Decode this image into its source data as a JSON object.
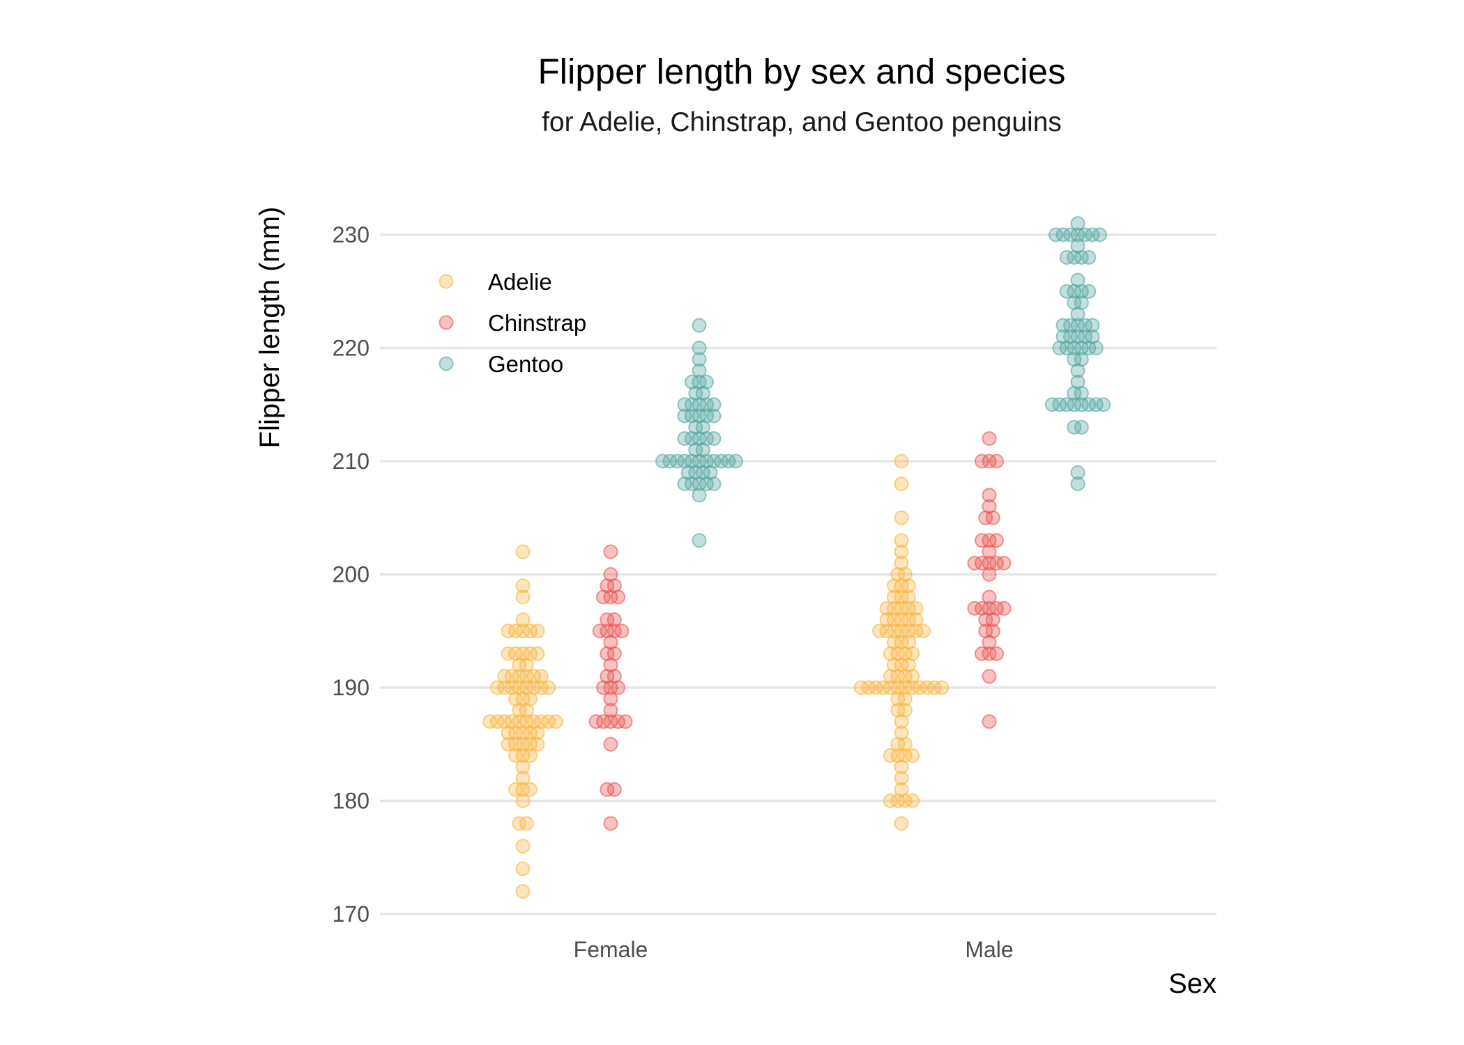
{
  "chart_data": {
    "type": "scatter",
    "subtype": "dotplot",
    "title": "Flipper length by sex and species",
    "subtitle": "for Adelie, Chinstrap, and Gentoo penguins",
    "xlabel": "Sex",
    "ylabel": "Flipper length (mm)",
    "categories": [
      "Female",
      "Male"
    ],
    "ylim": [
      169,
      233
    ],
    "yticks": [
      170,
      180,
      190,
      200,
      210,
      220,
      230
    ],
    "grid": "horizontal",
    "legend": "top-left",
    "series": [
      {
        "name": "Adelie",
        "color": "#F8B541",
        "values": {
          "Female": [
            172,
            174,
            176,
            178,
            178,
            180,
            181,
            181,
            181,
            182,
            183,
            184,
            184,
            184,
            185,
            185,
            185,
            185,
            185,
            186,
            186,
            186,
            186,
            186,
            187,
            187,
            187,
            187,
            187,
            187,
            187,
            187,
            187,
            187,
            188,
            188,
            189,
            189,
            189,
            190,
            190,
            190,
            190,
            190,
            190,
            190,
            190,
            191,
            191,
            191,
            191,
            191,
            191,
            192,
            192,
            193,
            193,
            193,
            193,
            193,
            195,
            195,
            195,
            195,
            195,
            196,
            198,
            199,
            202
          ],
          "Male": [
            178,
            180,
            180,
            180,
            180,
            181,
            182,
            183,
            184,
            184,
            184,
            184,
            185,
            185,
            186,
            187,
            188,
            188,
            189,
            189,
            190,
            190,
            190,
            190,
            190,
            190,
            190,
            190,
            190,
            190,
            190,
            190,
            191,
            191,
            191,
            191,
            192,
            192,
            192,
            193,
            193,
            193,
            193,
            194,
            194,
            194,
            195,
            195,
            195,
            195,
            195,
            195,
            195,
            196,
            196,
            196,
            196,
            196,
            197,
            197,
            197,
            197,
            197,
            198,
            198,
            198,
            199,
            199,
            199,
            200,
            200,
            201,
            202,
            203,
            205,
            208,
            210
          ]
        }
      },
      {
        "name": "Chinstrap",
        "color": "#E8534F",
        "values": {
          "Female": [
            178,
            181,
            181,
            185,
            187,
            187,
            187,
            187,
            187,
            188,
            189,
            190,
            190,
            190,
            191,
            191,
            192,
            193,
            193,
            194,
            195,
            195,
            195,
            195,
            196,
            196,
            198,
            198,
            198,
            199,
            199,
            200,
            202
          ],
          "Male": [
            187,
            191,
            193,
            193,
            193,
            194,
            195,
            195,
            196,
            196,
            197,
            197,
            197,
            197,
            197,
            198,
            200,
            201,
            201,
            201,
            201,
            201,
            202,
            203,
            203,
            203,
            205,
            205,
            206,
            207,
            210,
            210,
            210,
            212
          ]
        }
      },
      {
        "name": "Gentoo",
        "color": "#53A5A0",
        "values": {
          "Female": [
            203,
            207,
            208,
            208,
            208,
            208,
            208,
            209,
            209,
            209,
            209,
            210,
            210,
            210,
            210,
            210,
            210,
            210,
            210,
            210,
            210,
            210,
            211,
            211,
            212,
            212,
            212,
            212,
            212,
            213,
            213,
            214,
            214,
            214,
            214,
            214,
            215,
            215,
            215,
            215,
            215,
            216,
            216,
            217,
            217,
            217,
            218,
            219,
            220,
            222
          ],
          "Male": [
            208,
            209,
            213,
            213,
            215,
            215,
            215,
            215,
            215,
            215,
            215,
            215,
            216,
            216,
            217,
            218,
            219,
            219,
            220,
            220,
            220,
            220,
            220,
            220,
            221,
            221,
            221,
            221,
            221,
            222,
            222,
            222,
            222,
            222,
            223,
            224,
            224,
            225,
            225,
            225,
            225,
            226,
            228,
            228,
            228,
            228,
            229,
            230,
            230,
            230,
            230,
            230,
            230,
            230,
            231
          ]
        }
      }
    ]
  }
}
